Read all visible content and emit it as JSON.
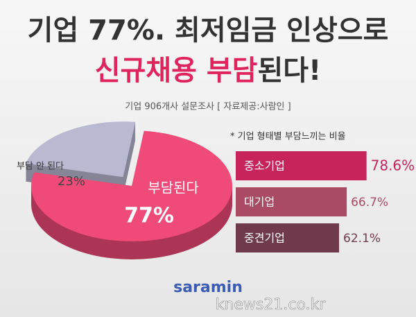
{
  "title_line1": "기업 77%. 최저임금 인상으로",
  "title_line2": [
    "신규채용 부담",
    "된다!"
  ],
  "subtitle": "기업 906개사 설문조사 [ 자료제공:사람인 ]",
  "chart_data": [
    {
      "type": "pie",
      "categories": [
        "부담된다",
        "부담 안 된다"
      ],
      "values": [
        77,
        23
      ],
      "value_labels": [
        "77%",
        "23%"
      ],
      "colors": [
        "#ef4a78",
        "#b9b9d2"
      ]
    },
    {
      "type": "hbar",
      "title": "* 기업 형태별 부담느끼는 비율",
      "categories": [
        "중소기업",
        "대기업",
        "중견기업"
      ],
      "values": [
        78.6,
        66.7,
        62.1
      ],
      "value_labels": [
        "78.6%",
        "66.7%",
        "62.1%"
      ],
      "colors": [
        "#c6245a",
        "#a94b64",
        "#6f3a4b"
      ]
    }
  ],
  "logo": "saramin",
  "watermark": "knews21.co.kr"
}
